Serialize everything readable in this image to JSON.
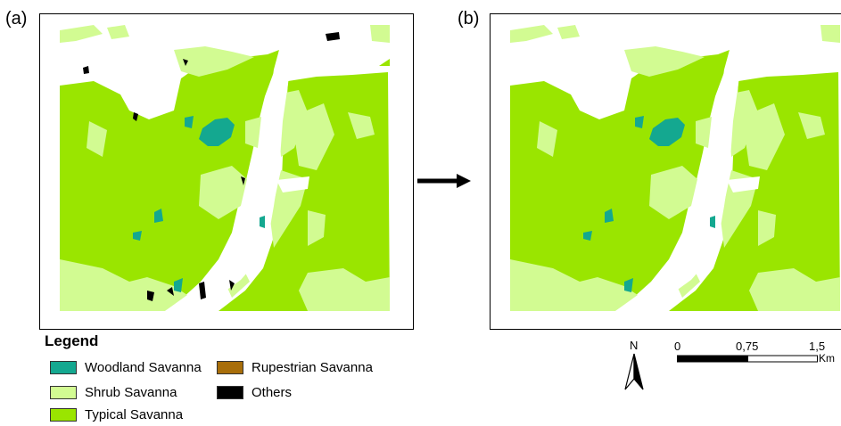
{
  "panels": [
    {
      "label": "(a)"
    },
    {
      "label": "(b)"
    }
  ],
  "legend": {
    "title": "Legend",
    "items": [
      {
        "label": "Woodland Savanna",
        "color": "#14a890"
      },
      {
        "label": "Rupestrian Savanna",
        "color": "#a86e0a"
      },
      {
        "label": "Shrub Savanna",
        "color": "#d2fb92"
      },
      {
        "label": "Others",
        "color": "#000000"
      },
      {
        "label": "Typical Savanna",
        "color": "#9ae500"
      }
    ]
  },
  "north_arrow": {
    "label": "N"
  },
  "scale_bar": {
    "ticks": [
      "0",
      "0,75",
      "1,5"
    ],
    "unit": "Km"
  },
  "colors": {
    "typical": "#9ae500",
    "shrub": "#d2fb92",
    "woodland": "#14a890",
    "others": "#000000",
    "river": "#ffffff"
  }
}
